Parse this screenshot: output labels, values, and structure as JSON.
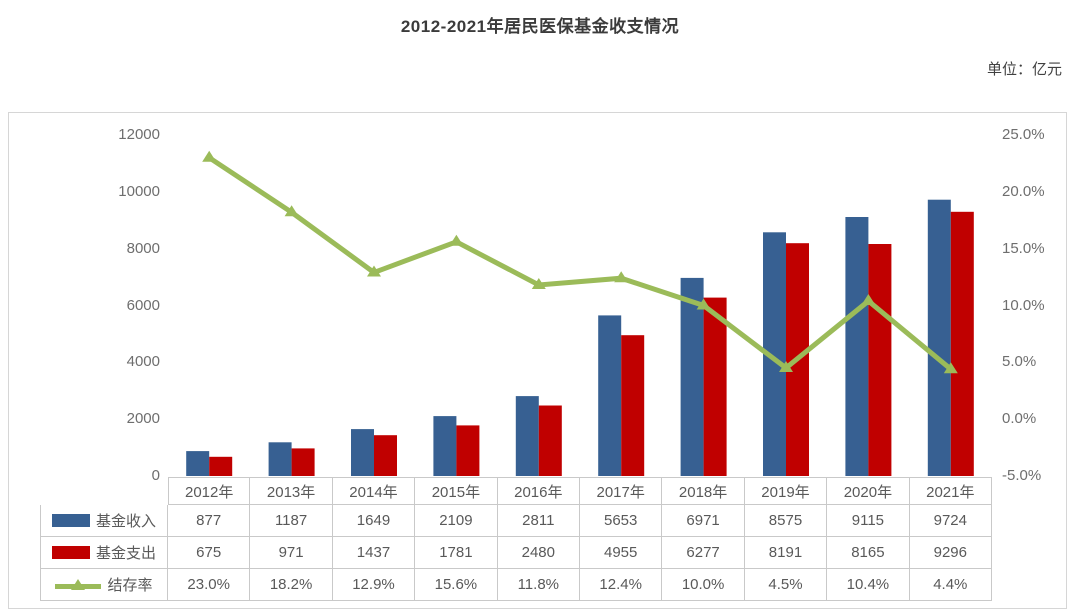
{
  "title": "2012-2021年居民医保基金收支情况",
  "unit_label": "单位：亿元",
  "colors": {
    "income": "#376092",
    "expenditure": "#C00000",
    "rate": "#9BBB59",
    "border": "#c9c9c9",
    "table_text": "#595959",
    "axis_text": "#6e6e6e",
    "title_text": "#3b3b3b"
  },
  "chart_data": {
    "type": "bar+line",
    "categories": [
      "2012年",
      "2013年",
      "2014年",
      "2015年",
      "2016年",
      "2017年",
      "2018年",
      "2019年",
      "2020年",
      "2021年"
    ],
    "series": [
      {
        "name": "基金收入",
        "type": "bar",
        "axis": "left",
        "color": "#376092",
        "values": [
          877,
          1187,
          1649,
          2109,
          2811,
          5653,
          6971,
          8575,
          9115,
          9724
        ],
        "labels": [
          "877",
          "1187",
          "1649",
          "2109",
          "2811",
          "5653",
          "6971",
          "8575",
          "9115",
          "9724"
        ]
      },
      {
        "name": "基金支出",
        "type": "bar",
        "axis": "left",
        "color": "#C00000",
        "values": [
          675,
          971,
          1437,
          1781,
          2480,
          4955,
          6277,
          8191,
          8165,
          9296
        ],
        "labels": [
          "675",
          "971",
          "1437",
          "1781",
          "2480",
          "4955",
          "6277",
          "8191",
          "8165",
          "9296"
        ]
      },
      {
        "name": "结存率",
        "type": "line",
        "axis": "right",
        "color": "#9BBB59",
        "values": [
          23.0,
          18.2,
          12.9,
          15.6,
          11.8,
          12.4,
          10.0,
          4.5,
          10.4,
          4.4
        ],
        "labels": [
          "23.0%",
          "18.2%",
          "12.9%",
          "15.6%",
          "11.8%",
          "12.4%",
          "10.0%",
          "4.5%",
          "10.4%",
          "4.4%"
        ]
      }
    ],
    "left_axis": {
      "min": 0,
      "max": 12000,
      "step": 2000,
      "ticks": [
        "0",
        "2000",
        "4000",
        "6000",
        "8000",
        "10000",
        "12000"
      ]
    },
    "right_axis": {
      "min": -5,
      "max": 25,
      "step": 5,
      "ticks": [
        "-5.0%",
        "0.0%",
        "5.0%",
        "10.0%",
        "15.0%",
        "20.0%",
        "25.0%"
      ]
    },
    "grid": false,
    "legend_position": "table-left-column",
    "title": "2012-2021年居民医保基金收支情况",
    "unit": "单位：亿元"
  }
}
